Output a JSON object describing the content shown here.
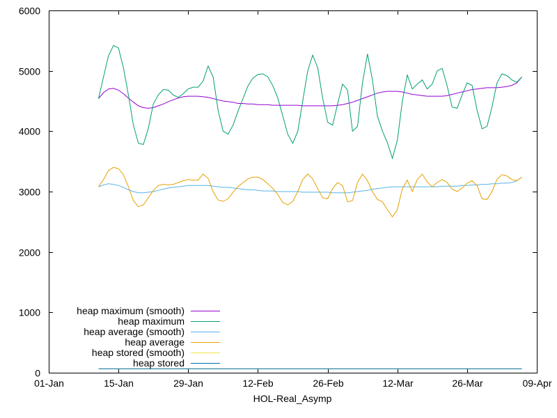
{
  "chart_data": {
    "type": "line",
    "xlabel": "HOL-Real_Asymp",
    "ylabel": "",
    "x_ticks": [
      "01-Jan",
      "15-Jan",
      "29-Jan",
      "12-Feb",
      "26-Feb",
      "12-Mar",
      "26-Mar",
      "09-Apr"
    ],
    "xlim": [
      "01-Jan",
      "09-Apr"
    ],
    "ylim": [
      0,
      6000
    ],
    "y_ticks": [
      0,
      1000,
      2000,
      3000,
      4000,
      5000,
      6000
    ],
    "grid": false,
    "legend_position": "bottom-left",
    "x": [
      "2021-01-11",
      "2021-01-12",
      "2021-01-13",
      "2021-01-14",
      "2021-01-15",
      "2021-01-16",
      "2021-01-17",
      "2021-01-18",
      "2021-01-19",
      "2021-01-20",
      "2021-01-21",
      "2021-01-22",
      "2021-01-23",
      "2021-01-24",
      "2021-01-25",
      "2021-01-26",
      "2021-01-27",
      "2021-01-28",
      "2021-01-29",
      "2021-01-30",
      "2021-01-31",
      "2021-02-01",
      "2021-02-02",
      "2021-02-03",
      "2021-02-04",
      "2021-02-05",
      "2021-02-06",
      "2021-02-07",
      "2021-02-08",
      "2021-02-09",
      "2021-02-10",
      "2021-02-11",
      "2021-02-12",
      "2021-02-13",
      "2021-02-14",
      "2021-02-15",
      "2021-02-16",
      "2021-02-17",
      "2021-02-18",
      "2021-02-19",
      "2021-02-20",
      "2021-02-21",
      "2021-02-22",
      "2021-02-23",
      "2021-02-24",
      "2021-02-25",
      "2021-02-26",
      "2021-02-27",
      "2021-02-28",
      "2021-03-01",
      "2021-03-02",
      "2021-03-03",
      "2021-03-04",
      "2021-03-05",
      "2021-03-06",
      "2021-03-07",
      "2021-03-08",
      "2021-03-09",
      "2021-03-10",
      "2021-03-11",
      "2021-03-12",
      "2021-03-13",
      "2021-03-14",
      "2021-03-15",
      "2021-03-16",
      "2021-03-17",
      "2021-03-18",
      "2021-03-19",
      "2021-03-20",
      "2021-03-21",
      "2021-03-22",
      "2021-03-23",
      "2021-03-24",
      "2021-03-25",
      "2021-03-26",
      "2021-03-27",
      "2021-03-28",
      "2021-03-29",
      "2021-03-30",
      "2021-03-31",
      "2021-04-01",
      "2021-04-02",
      "2021-04-03",
      "2021-04-04",
      "2021-04-05",
      "2021-04-06"
    ],
    "series": [
      {
        "name": "heap maximum (smooth)",
        "color": "#9400d3",
        "values": [
          4540,
          4640,
          4700,
          4710,
          4680,
          4620,
          4550,
          4480,
          4420,
          4390,
          4380,
          4390,
          4420,
          4450,
          4490,
          4520,
          4550,
          4570,
          4580,
          4580,
          4580,
          4570,
          4560,
          4540,
          4520,
          4500,
          4490,
          4480,
          4460,
          4460,
          4450,
          4450,
          4440,
          4440,
          4440,
          4430,
          4430,
          4430,
          4430,
          4430,
          4430,
          4420,
          4420,
          4420,
          4420,
          4420,
          4420,
          4420,
          4430,
          4440,
          4460,
          4480,
          4510,
          4540,
          4570,
          4600,
          4630,
          4650,
          4660,
          4660,
          4660,
          4650,
          4630,
          4610,
          4600,
          4590,
          4580,
          4580,
          4580,
          4580,
          4590,
          4610,
          4630,
          4650,
          4670,
          4690,
          4700,
          4710,
          4720,
          4720,
          4720,
          4730,
          4740,
          4760,
          4800,
          4900
        ]
      },
      {
        "name": "heap maximum",
        "color": "#009e73",
        "values": [
          4540,
          4900,
          5250,
          5420,
          5380,
          5050,
          4600,
          4100,
          3800,
          3780,
          4050,
          4450,
          4600,
          4690,
          4680,
          4600,
          4560,
          4620,
          4700,
          4730,
          4730,
          4830,
          5080,
          4900,
          4350,
          4000,
          3950,
          4100,
          4330,
          4540,
          4750,
          4880,
          4940,
          4950,
          4900,
          4750,
          4550,
          4250,
          3950,
          3800,
          4000,
          4500,
          5000,
          5260,
          5050,
          4550,
          4150,
          4100,
          4450,
          4780,
          4680,
          4000,
          4080,
          4800,
          5280,
          4850,
          4250,
          4000,
          3810,
          3550,
          3850,
          4500,
          4930,
          4700,
          4780,
          4850,
          4700,
          4780,
          5000,
          5040,
          4750,
          4400,
          4380,
          4600,
          4800,
          4760,
          4350,
          4040,
          4080,
          4400,
          4800,
          4950,
          4920,
          4850,
          4810,
          4900
        ]
      },
      {
        "name": "heap average (smooth)",
        "color": "#56b4e9",
        "values": [
          3080,
          3110,
          3130,
          3120,
          3100,
          3070,
          3030,
          3000,
          2980,
          2980,
          2990,
          3000,
          3020,
          3040,
          3060,
          3070,
          3080,
          3090,
          3100,
          3100,
          3100,
          3100,
          3100,
          3090,
          3080,
          3070,
          3070,
          3060,
          3050,
          3040,
          3030,
          3030,
          3020,
          3010,
          3010,
          3010,
          3000,
          3000,
          3000,
          3000,
          3000,
          2990,
          2990,
          2990,
          2990,
          2990,
          2990,
          2980,
          2980,
          2980,
          2980,
          2990,
          3000,
          3010,
          3020,
          3040,
          3050,
          3060,
          3070,
          3080,
          3080,
          3080,
          3080,
          3080,
          3080,
          3080,
          3080,
          3080,
          3080,
          3090,
          3090,
          3090,
          3090,
          3100,
          3100,
          3110,
          3110,
          3120,
          3120,
          3130,
          3130,
          3140,
          3140,
          3150,
          3180,
          3240
        ]
      },
      {
        "name": "heap average",
        "color": "#e69f00",
        "values": [
          3080,
          3200,
          3350,
          3400,
          3380,
          3280,
          3080,
          2850,
          2750,
          2780,
          2900,
          3020,
          3100,
          3120,
          3110,
          3120,
          3150,
          3180,
          3200,
          3190,
          3190,
          3290,
          3220,
          3000,
          2860,
          2840,
          2880,
          2990,
          3080,
          3150,
          3210,
          3240,
          3240,
          3200,
          3130,
          3050,
          2950,
          2820,
          2780,
          2840,
          3000,
          3200,
          3290,
          3210,
          3050,
          2900,
          2880,
          3050,
          3150,
          3100,
          2830,
          2850,
          3150,
          3290,
          3180,
          3000,
          2870,
          2830,
          2700,
          2580,
          2700,
          3050,
          3190,
          3000,
          3200,
          3290,
          3160,
          3080,
          3150,
          3200,
          3150,
          3040,
          3000,
          3060,
          3140,
          3180,
          3100,
          2880,
          2870,
          3000,
          3200,
          3280,
          3260,
          3200,
          3180,
          3240
        ]
      },
      {
        "name": "heap stored (smooth)",
        "color": "#f0e442",
        "values": [
          65,
          65,
          65,
          65,
          65,
          65,
          65,
          65,
          65,
          65,
          65,
          65,
          65,
          65,
          65,
          65,
          65,
          65,
          65,
          65,
          65,
          65,
          65,
          65,
          65,
          65,
          65,
          65,
          65,
          65,
          65,
          65,
          65,
          65,
          65,
          65,
          65,
          65,
          65,
          65,
          65,
          65,
          65,
          65,
          65,
          65,
          65,
          65,
          65,
          65,
          65,
          65,
          65,
          65,
          65,
          65,
          65,
          65,
          65,
          65,
          65,
          65,
          65,
          65,
          65,
          65,
          65,
          65,
          65,
          65,
          65,
          65,
          65,
          65,
          65,
          65,
          65,
          65,
          65,
          65,
          65,
          65,
          65,
          65,
          65,
          65
        ]
      },
      {
        "name": "heap stored",
        "color": "#0072b2",
        "values": [
          65,
          65,
          65,
          65,
          65,
          65,
          65,
          65,
          65,
          65,
          65,
          65,
          65,
          65,
          65,
          65,
          65,
          65,
          65,
          65,
          65,
          65,
          65,
          65,
          65,
          65,
          65,
          65,
          65,
          65,
          65,
          65,
          65,
          65,
          65,
          65,
          65,
          65,
          65,
          65,
          65,
          65,
          65,
          65,
          65,
          65,
          65,
          65,
          65,
          65,
          65,
          65,
          65,
          65,
          65,
          65,
          65,
          65,
          65,
          65,
          65,
          65,
          65,
          65,
          65,
          65,
          65,
          65,
          65,
          65,
          65,
          65,
          65,
          65,
          65,
          65,
          65,
          65,
          65,
          65,
          65,
          65,
          65,
          65,
          65,
          65
        ]
      }
    ]
  }
}
